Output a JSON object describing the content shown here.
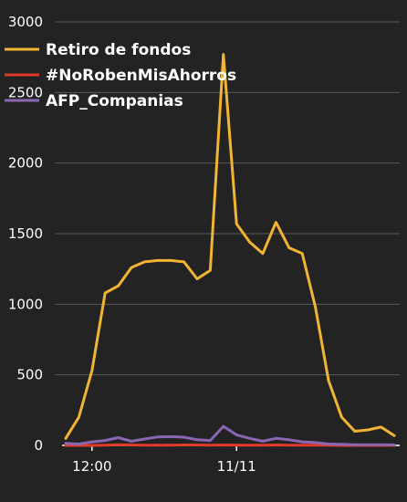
{
  "chart_data": {
    "type": "line",
    "title": "",
    "xlabel": "",
    "ylabel": "",
    "ylim": [
      0,
      3000
    ],
    "grid": true,
    "legend_position": "top-left",
    "y_ticks": [
      "0",
      "500",
      "1000",
      "1500",
      "2000",
      "2500",
      "3000"
    ],
    "x_ticks": [
      {
        "label": "12:00",
        "index": 2
      },
      {
        "label": "11/11",
        "index": 13
      }
    ],
    "series": [
      {
        "name": "Retiro de fondos",
        "color": "#f2b533",
        "values": [
          50,
          200,
          530,
          1080,
          1130,
          1260,
          1300,
          1310,
          1310,
          1300,
          1180,
          1240,
          2770,
          1570,
          1440,
          1360,
          1580,
          1400,
          1360,
          980,
          460,
          200,
          100,
          110,
          130,
          70
        ]
      },
      {
        "name": "#NoRobenMisAhorros",
        "color": "#e23a2b",
        "values": [
          0,
          0,
          0,
          2,
          5,
          3,
          2,
          2,
          2,
          3,
          3,
          2,
          3,
          2,
          2,
          2,
          3,
          2,
          2,
          1,
          1,
          0,
          0,
          0,
          0,
          0
        ]
      },
      {
        "name": "AFP_Companias",
        "color": "#8b67b3",
        "values": [
          15,
          10,
          25,
          35,
          55,
          30,
          45,
          60,
          62,
          58,
          40,
          35,
          135,
          75,
          50,
          30,
          50,
          40,
          25,
          20,
          10,
          8,
          5,
          5,
          5,
          3
        ]
      }
    ]
  }
}
